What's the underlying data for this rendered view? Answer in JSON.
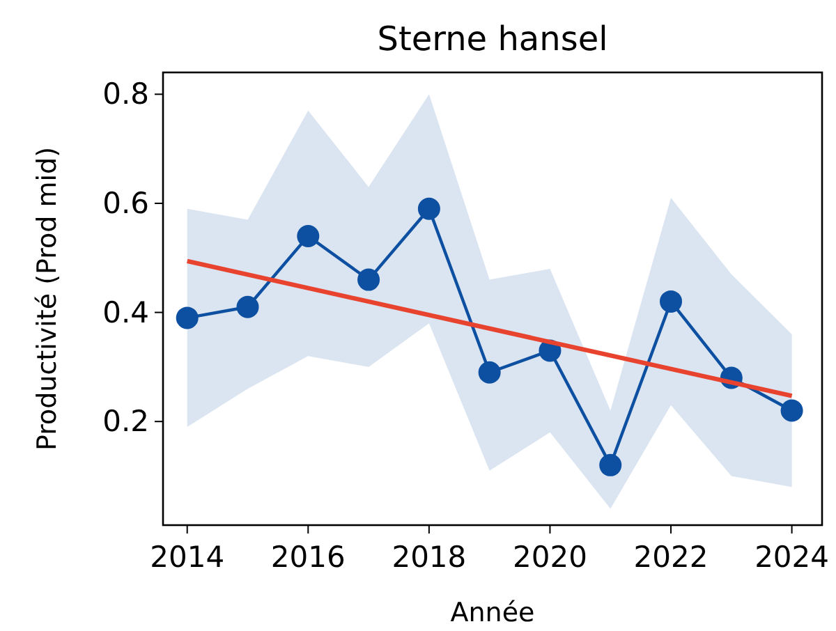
{
  "chart_data": {
    "type": "line",
    "title": "Sterne hansel",
    "xlabel": "Année",
    "ylabel": "Productivité (Prod mid)",
    "x": [
      2014,
      2015,
      2016,
      2017,
      2018,
      2019,
      2020,
      2021,
      2022,
      2023,
      2024
    ],
    "series": [
      {
        "color": "#0d4fa0",
        "marker": "circle",
        "values": [
          0.39,
          0.41,
          0.54,
          0.46,
          0.59,
          0.29,
          0.33,
          0.12,
          0.42,
          0.28,
          0.22
        ],
        "lower": [
          0.19,
          0.26,
          0.32,
          0.3,
          0.38,
          0.11,
          0.18,
          0.04,
          0.23,
          0.1,
          0.08
        ],
        "upper": [
          0.59,
          0.57,
          0.77,
          0.63,
          0.8,
          0.46,
          0.48,
          0.22,
          0.61,
          0.47,
          0.36
        ]
      },
      {
        "type": "line",
        "color": "#e8432e",
        "x": [
          2014,
          2024
        ],
        "values": [
          0.494,
          0.247
        ],
        "marker": "none"
      }
    ],
    "xlim": [
      2013.6,
      2024.5
    ],
    "ylim": [
      0.01,
      0.84
    ],
    "xticks": [
      2014,
      2016,
      2018,
      2020,
      2022,
      2024
    ],
    "yticks": [
      0.2,
      0.4,
      0.6,
      0.8
    ],
    "grid": false
  }
}
